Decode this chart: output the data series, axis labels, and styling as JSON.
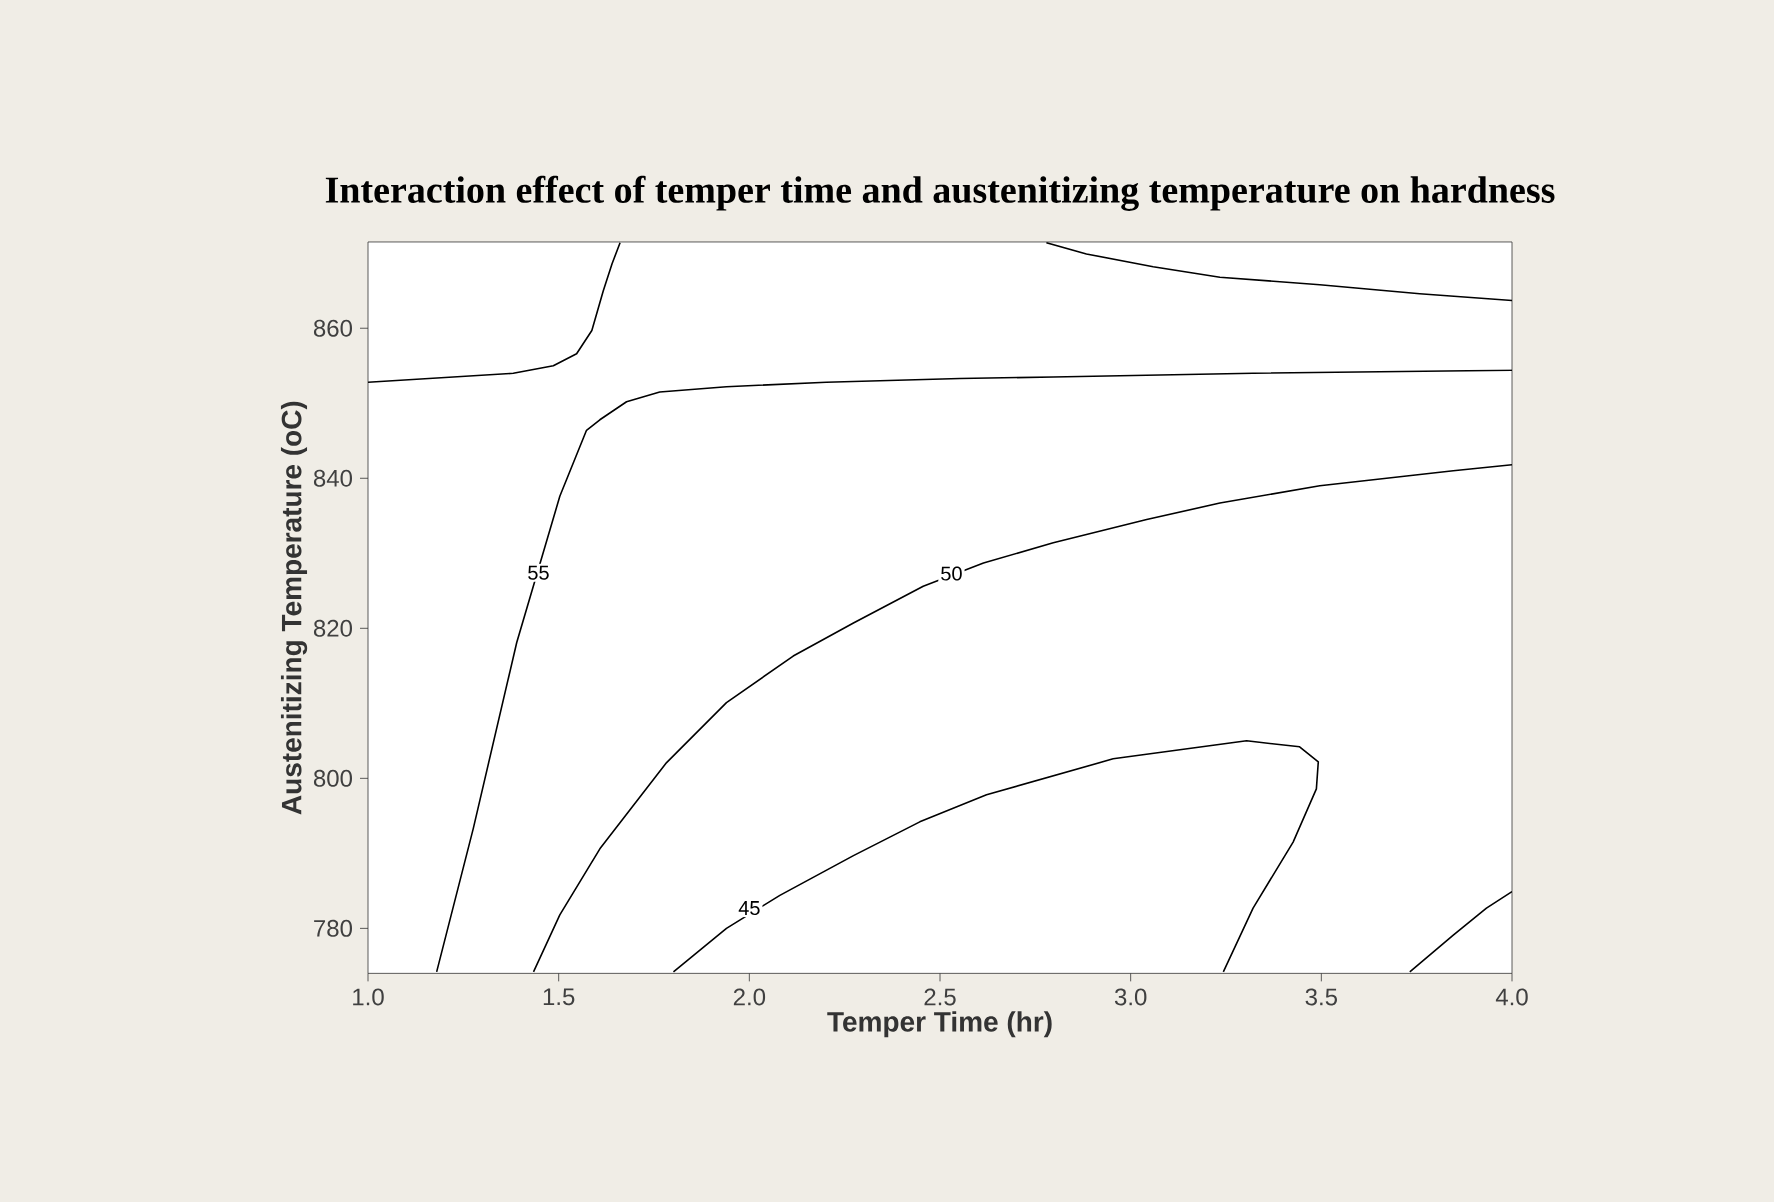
{
  "chart_data": {
    "type": "line",
    "title": "Interaction effect of temper time and austenitizing temperature on hardness",
    "xlabel": "Temper Time (hr)",
    "ylabel": "Austenitizing Temperature (oC)",
    "xlim": [
      1,
      4
    ],
    "ylim": [
      774,
      871.5
    ],
    "xticks": [
      {
        "value": 1,
        "label": "1.0"
      },
      {
        "value": 1.5,
        "label": "1.5"
      },
      {
        "value": 2,
        "label": "2.0"
      },
      {
        "value": 2.5,
        "label": "2.5"
      },
      {
        "value": 3,
        "label": "3.0"
      },
      {
        "value": 3.5,
        "label": "3.5"
      },
      {
        "value": 4,
        "label": "4.0"
      }
    ],
    "yticks": [
      780,
      800,
      820,
      840,
      860
    ],
    "line_style": "solid",
    "marker": "none",
    "series": [
      {
        "color": "#000000",
        "x": [
          1.0,
          1.381,
          1.486,
          1.547,
          1.587,
          1.617,
          1.64,
          1.661
        ],
        "values": [
          852.8,
          854.0,
          855.0,
          856.6,
          859.7,
          865.0,
          868.6,
          871.4
        ]
      },
      {
        "color": "#000000",
        "x": [
          1.18,
          1.276,
          1.39,
          1.442,
          1.503,
          1.573,
          1.608,
          1.678,
          1.765,
          1.94,
          2.202,
          2.552,
          2.797,
          3.321,
          4.0
        ],
        "values": [
          774.2,
          793.3,
          818.1,
          null,
          837.6,
          846.4,
          847.8,
          850.2,
          851.5,
          852.2,
          852.8,
          853.3,
          853.5,
          854.0,
          854.4
        ]
      },
      {
        "color": "#000000",
        "x": [
          2.779,
          2.884,
          3.059,
          3.234,
          3.496,
          3.758,
          4.0
        ],
        "values": [
          871.4,
          869.9,
          868.2,
          866.8,
          865.8,
          864.6,
          863.7
        ]
      },
      {
        "color": "#000000",
        "x": [
          1.434,
          1.503,
          1.608,
          1.783,
          1.94,
          2.115,
          2.273,
          2.456,
          2.614,
          2.797,
          3.042,
          3.234,
          3.496,
          3.846,
          4.0
        ],
        "values": [
          774.2,
          781.8,
          790.6,
          802.1,
          810.1,
          816.3,
          820.7,
          825.6,
          828.7,
          831.4,
          834.5,
          836.7,
          839.0,
          841.0,
          841.8
        ]
      },
      {
        "color": "#000000",
        "x": [
          1.801,
          1.94,
          2.08,
          2.273,
          2.447,
          2.622,
          2.954,
          3.304,
          3.443,
          3.492,
          3.487,
          3.426,
          3.321,
          3.243
        ],
        "values": [
          774.2,
          780.0,
          784.4,
          789.7,
          794.2,
          797.8,
          802.6,
          805.0,
          804.2,
          802.2,
          798.6,
          791.5,
          782.7,
          774.2
        ]
      },
      {
        "color": "#000000",
        "x": [
          3.732,
          3.846,
          3.933,
          4.0
        ],
        "values": [
          774.2,
          779.1,
          782.7,
          784.9
        ]
      }
    ],
    "annotations": [
      {
        "text": "55",
        "x": 1.447,
        "y": 827.4
      },
      {
        "text": "50",
        "x": 2.53,
        "y": 827.3
      },
      {
        "text": "45",
        "x": 2.0,
        "y": 782.7
      }
    ]
  }
}
